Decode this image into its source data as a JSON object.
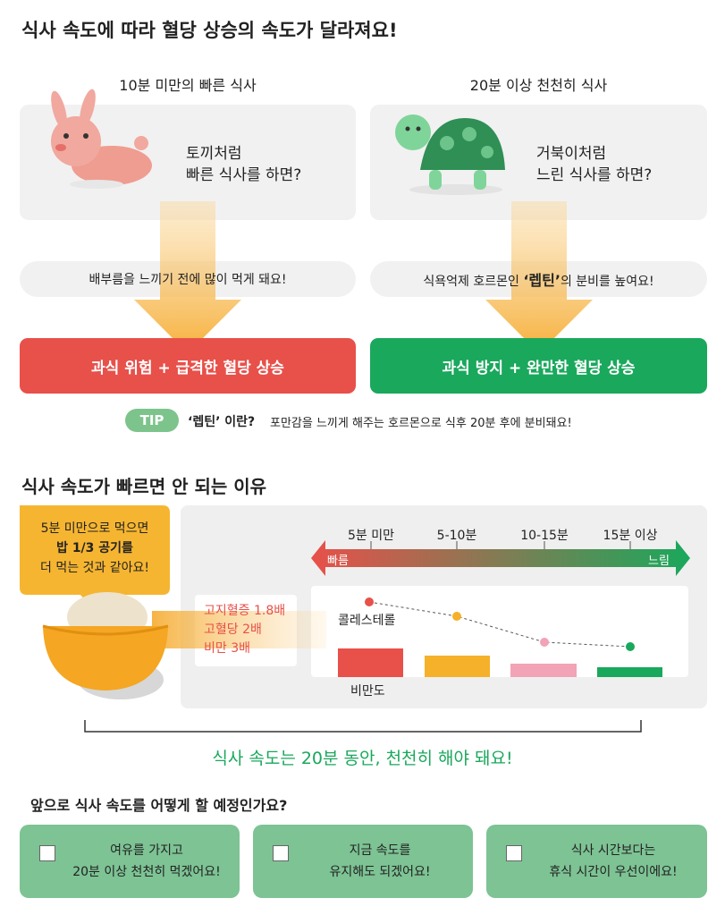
{
  "section1": {
    "title": "식사 속도에 따라 혈당 상승의 속도가 달라져요!",
    "columns": [
      {
        "heading": "10분 미만의 빠른 식사",
        "card_lines": [
          "토끼처럼",
          "빠른 식사를 하면?"
        ],
        "note": [
          "배부름을 느끼기 전에 많이 먹게 돼요!"
        ],
        "result": "과식 위험 + 급격한 혈당 상승"
      },
      {
        "heading": "20분 이상 천천히 식사",
        "card_lines": [
          "거북이처럼",
          "느린 식사를 하면?"
        ],
        "note": [
          "식욕억제 호르몬인 ",
          "‘렙틴’",
          "의 분비를 높여요!"
        ],
        "result": "과식 방지 + 완만한 혈당 상승"
      }
    ],
    "tip": {
      "badge": "TIP",
      "term": "‘렙틴’ 이란?",
      "text": "포만감을 느끼게 해주는 호르몬으로 식후 20분 후에 분비돼요!"
    }
  },
  "section2": {
    "title": "식사 속도가 빠르면 안 되는 이유",
    "bubble_lines": [
      "5분 미만으로 먹으면",
      "밥 1/3 공기를",
      "더 먹는 것과 같아요!"
    ],
    "risks": [
      "고지혈증 1.8배",
      "고혈당 2배",
      "비만 3배"
    ],
    "speeds": [
      "5분 미만",
      "5-10분",
      "10-15분",
      "15분 이상"
    ],
    "arrow_start": "빠름",
    "arrow_end": "느림",
    "line_label": "콜레스테롤",
    "bar_label": "비만도",
    "conclusion": "식사 속도는 20분 동안, 천천히 해야 돼요!"
  },
  "section3": {
    "question": "앞으로 식사 속도를 어떻게 할 예정인가요?",
    "options": [
      [
        "여유를 가지고",
        "20분 이상 천천히 먹겠어요!"
      ],
      [
        "지금 속도를",
        "유지해도 되겠어요!"
      ],
      [
        "식사 시간보다는",
        "휴식 시간이 우선이에요!"
      ]
    ]
  }
}
